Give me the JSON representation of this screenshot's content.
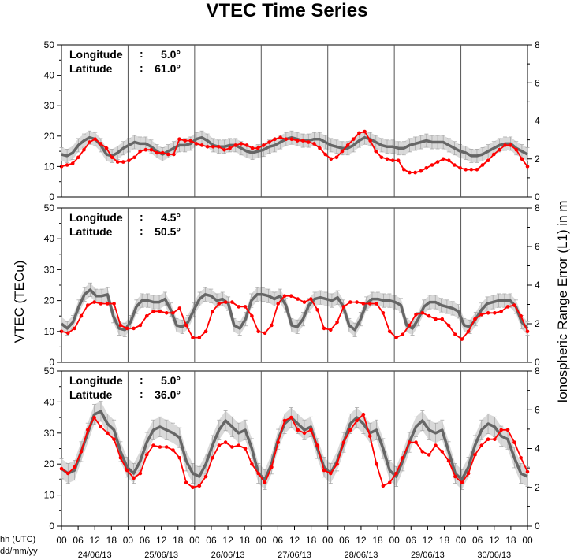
{
  "title": "VTEC Time Series",
  "left_axis_label": "VTEC (TECu)",
  "right_axis_label": "Ionospheric Range Error (L1) in m",
  "footer": {
    "time_label": "hh (UTC)",
    "date_label": "dd/mm/yy"
  },
  "colors": {
    "reference": "#666666",
    "measured": "#ff0000",
    "error_bars": "#aaaaaa",
    "band": "#d9d9d9"
  },
  "chart_data": [
    {
      "type": "line",
      "panel": "top",
      "longitude_label": "Longitude",
      "longitude_value": "5.0°",
      "latitude_label": "Latitude",
      "latitude_value": "61.0°",
      "ylim": [
        0,
        50
      ],
      "y2lim": [
        0,
        8
      ],
      "yticks": [
        0,
        10,
        20,
        30,
        40,
        50
      ],
      "y2ticks": [
        0,
        2,
        4,
        6,
        8
      ],
      "series": [
        {
          "values": [
            14,
            13.5,
            14.5,
            17,
            18.5,
            19.5,
            19,
            17,
            14,
            13.5,
            14.5,
            16,
            17,
            18,
            17.5,
            17.5,
            16.5,
            15,
            14,
            15,
            16,
            17,
            17,
            17.5,
            19,
            19.5,
            18.5,
            17,
            16.5,
            16.5,
            17,
            17,
            16,
            15,
            14.5,
            15,
            15.5,
            16.5,
            17,
            18,
            19,
            19.5,
            19,
            18.5,
            18.5,
            19,
            19,
            18,
            17,
            16.5,
            16,
            16,
            17,
            18.5,
            19.5,
            19,
            18,
            17,
            16.5,
            16.5,
            16,
            16,
            17,
            17.5,
            18,
            18.5,
            18,
            18,
            18,
            17,
            16,
            15,
            14.5,
            13.5,
            13.5,
            14,
            15,
            16,
            17,
            17.5,
            17.5,
            16,
            15,
            14
          ]
        },
        {
          "values": [
            10,
            10.5,
            11,
            13,
            15.5,
            18,
            19,
            17.5,
            16,
            13,
            11.5,
            11.5,
            12,
            13,
            15,
            15.5,
            15.5,
            14.5,
            14.5,
            14,
            14,
            19,
            18.5,
            18.5,
            17.5,
            17,
            16.5,
            16.5,
            16.5,
            15.5,
            16,
            17,
            17.5,
            17,
            16,
            16,
            17,
            18,
            19,
            19.5,
            19,
            19,
            18.5,
            18.5,
            18,
            17.5,
            16,
            14,
            12.5,
            13,
            15,
            17,
            19,
            21,
            21.5,
            18.5,
            15,
            13,
            12.5,
            12,
            12,
            9,
            8,
            8,
            8.5,
            9.5,
            10.5,
            11.5,
            12.5,
            12,
            10.5,
            9.5,
            9,
            9,
            9,
            10.5,
            12,
            14,
            15.5,
            17,
            17,
            15.5,
            12.5,
            10
          ]
        }
      ]
    },
    {
      "type": "line",
      "panel": "middle",
      "longitude_label": "Longitude",
      "longitude_value": "4.5°",
      "latitude_label": "Latitude",
      "latitude_value": "50.5°",
      "ylim": [
        0,
        50
      ],
      "y2lim": [
        0,
        8
      ],
      "yticks": [
        0,
        10,
        20,
        30,
        40,
        50
      ],
      "y2ticks": [
        0,
        2,
        4,
        6,
        8
      ],
      "series": [
        {
          "values": [
            12.5,
            11,
            13,
            18,
            22,
            23.5,
            21.5,
            21.5,
            22,
            15,
            11,
            10.5,
            13,
            18,
            20,
            20,
            19.5,
            19.5,
            20.5,
            17,
            12,
            11.5,
            13,
            17,
            20.5,
            22,
            21.5,
            20,
            20.5,
            19,
            12,
            11,
            14,
            20,
            22,
            22,
            21.5,
            20.5,
            21.5,
            18.5,
            12,
            11.5,
            14,
            18.5,
            20.5,
            21,
            20.5,
            20,
            21,
            18,
            12,
            10.5,
            14,
            19,
            20.5,
            20.5,
            20,
            20,
            19.5,
            18.5,
            12,
            11,
            14,
            18,
            19.5,
            19.5,
            18.5,
            18,
            17.5,
            16.5,
            12,
            11.5,
            14,
            17,
            19,
            19.5,
            20,
            20,
            20,
            18,
            13,
            11
          ]
        },
        {
          "values": [
            10,
            9.5,
            11,
            15,
            18.5,
            19.5,
            19,
            19,
            19,
            12,
            11,
            11,
            12,
            15,
            16.5,
            16.5,
            16,
            16,
            17.5,
            12,
            8,
            8,
            10,
            16.5,
            19,
            19.5,
            19.5,
            18,
            18,
            15,
            10,
            9.5,
            12,
            19,
            21.5,
            21.5,
            20.5,
            19.5,
            20.5,
            17,
            11,
            10.5,
            13,
            18,
            19.5,
            19.5,
            19,
            19,
            19,
            16,
            10,
            8,
            9,
            12,
            15.5,
            16,
            15,
            14,
            14,
            12,
            9,
            7.5,
            10,
            14,
            15.5,
            16,
            16,
            16.5,
            18,
            18.5,
            15,
            10
          ]
        }
      ]
    },
    {
      "type": "line",
      "panel": "bottom",
      "longitude_label": "Longitude",
      "longitude_value": "5.0°",
      "latitude_label": "Latitude",
      "latitude_value": "36.0°",
      "ylim": [
        0,
        50
      ],
      "y2lim": [
        0,
        8
      ],
      "yticks": [
        0,
        10,
        20,
        30,
        40,
        50
      ],
      "y2ticks": [
        0,
        2,
        4,
        6,
        8
      ],
      "series": [
        {
          "values": [
            18.5,
            17,
            18,
            24,
            30,
            36,
            37,
            33,
            31,
            24,
            19,
            17,
            21,
            27,
            31,
            32,
            31,
            30,
            28.5,
            21,
            17,
            16,
            20,
            26,
            31,
            34,
            32,
            30,
            31,
            25,
            17,
            15,
            20,
            28,
            33,
            35,
            33,
            31,
            32,
            25,
            19,
            17,
            21,
            27,
            33,
            35,
            33,
            30,
            31,
            25,
            18,
            16,
            21,
            27,
            32,
            34,
            31,
            30,
            31,
            24,
            17,
            15,
            19,
            26,
            31,
            33,
            32,
            29,
            28,
            22,
            17,
            16
          ]
        },
        {
          "values": [
            18.5,
            17,
            19,
            24,
            31,
            35,
            32,
            30,
            28,
            22,
            18,
            15.5,
            17,
            23,
            26,
            25.5,
            25.5,
            24.5,
            22,
            14,
            12.5,
            13,
            16,
            22,
            26,
            27,
            25.5,
            26,
            25,
            20,
            17,
            14,
            19,
            27,
            34,
            35,
            31,
            30,
            31,
            26,
            18,
            17,
            20,
            27,
            31,
            34,
            36,
            29,
            20,
            13,
            14,
            17,
            22,
            27,
            27,
            24,
            23,
            26,
            24,
            21,
            16,
            14,
            17,
            23,
            26,
            28,
            28,
            31,
            31,
            27,
            22,
            17.5
          ]
        }
      ]
    }
  ],
  "x_axis": {
    "hour_ticks": [
      "00",
      "06",
      "12",
      "18",
      "00",
      "06",
      "12",
      "18",
      "00",
      "06",
      "12",
      "18",
      "00",
      "06",
      "12",
      "18",
      "00",
      "06",
      "12",
      "18",
      "00",
      "06",
      "12",
      "18",
      "00",
      "06",
      "12",
      "18",
      "00"
    ],
    "dates": [
      "24/06/13",
      "25/06/13",
      "26/06/13",
      "27/06/13",
      "28/06/13",
      "29/06/13",
      "30/06/13"
    ]
  }
}
